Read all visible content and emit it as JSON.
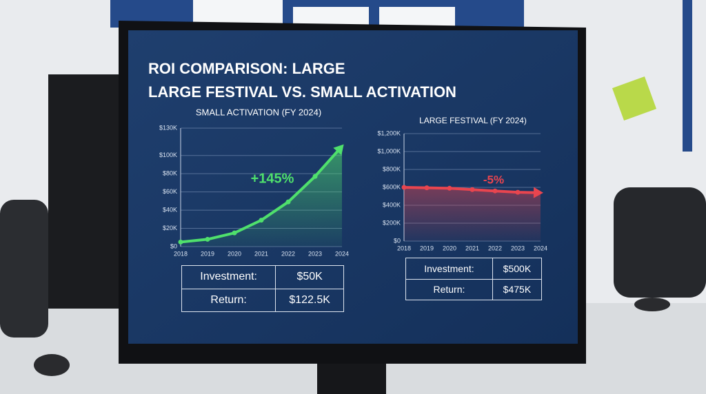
{
  "title": [
    "ROI COMPARISON: LARGE",
    "LARGE FESTIVAL  VS. SMALL ACTIVATION"
  ],
  "chart_data": [
    {
      "type": "line",
      "title": "SMALL ACTIVATION (FY 2024)",
      "annotation": "+145%",
      "color": "#4fe06c",
      "grid": true,
      "x": [
        2018,
        2019,
        2020,
        2021,
        2022,
        2023,
        2024
      ],
      "xlim": [
        2018,
        2024
      ],
      "xticks": [
        2018,
        2019,
        2020,
        2021,
        2022,
        2023,
        2024
      ],
      "values": [
        5000,
        8000,
        15000,
        29000,
        49000,
        77000,
        110000
      ],
      "ylim": [
        0,
        130000
      ],
      "yticks": [
        {
          "value": 0,
          "label": "$0"
        },
        {
          "value": 20000,
          "label": "$20K"
        },
        {
          "value": 40000,
          "label": "$40K"
        },
        {
          "value": 60000,
          "label": "$60K"
        },
        {
          "value": 80000,
          "label": "$80K"
        },
        {
          "value": 100000,
          "label": "$100K"
        },
        {
          "value": 130000,
          "label": "$130K"
        }
      ]
    },
    {
      "type": "line",
      "title": "LARGE FESTIVAL (FY 2024)",
      "annotation": "-5%",
      "color": "#e8454f",
      "grid": true,
      "x": [
        2018,
        2019,
        2020,
        2021,
        2022,
        2023,
        2024
      ],
      "xlim": [
        2018,
        2024
      ],
      "xticks": [
        2018,
        2019,
        2020,
        2021,
        2022,
        2023,
        2024
      ],
      "values": [
        600000,
        595000,
        590000,
        575000,
        560000,
        545000,
        540000
      ],
      "ylim": [
        0,
        1200000
      ],
      "yticks": [
        {
          "value": 0,
          "label": "$0"
        },
        {
          "value": 200000,
          "label": "$200K"
        },
        {
          "value": 400000,
          "label": "$400K"
        },
        {
          "value": 600000,
          "label": "$600K"
        },
        {
          "value": 800000,
          "label": "$800K"
        },
        {
          "value": 1000000,
          "label": "$1,000K"
        },
        {
          "value": 1200000,
          "label": "$1,200K"
        }
      ]
    }
  ],
  "tables": [
    {
      "rows": [
        [
          "Investment:",
          "$50K"
        ],
        [
          "Return:",
          "$122.5K"
        ]
      ]
    },
    {
      "rows": [
        [
          "Investment:",
          "$500K"
        ],
        [
          "Return:",
          "$475K"
        ]
      ]
    }
  ]
}
